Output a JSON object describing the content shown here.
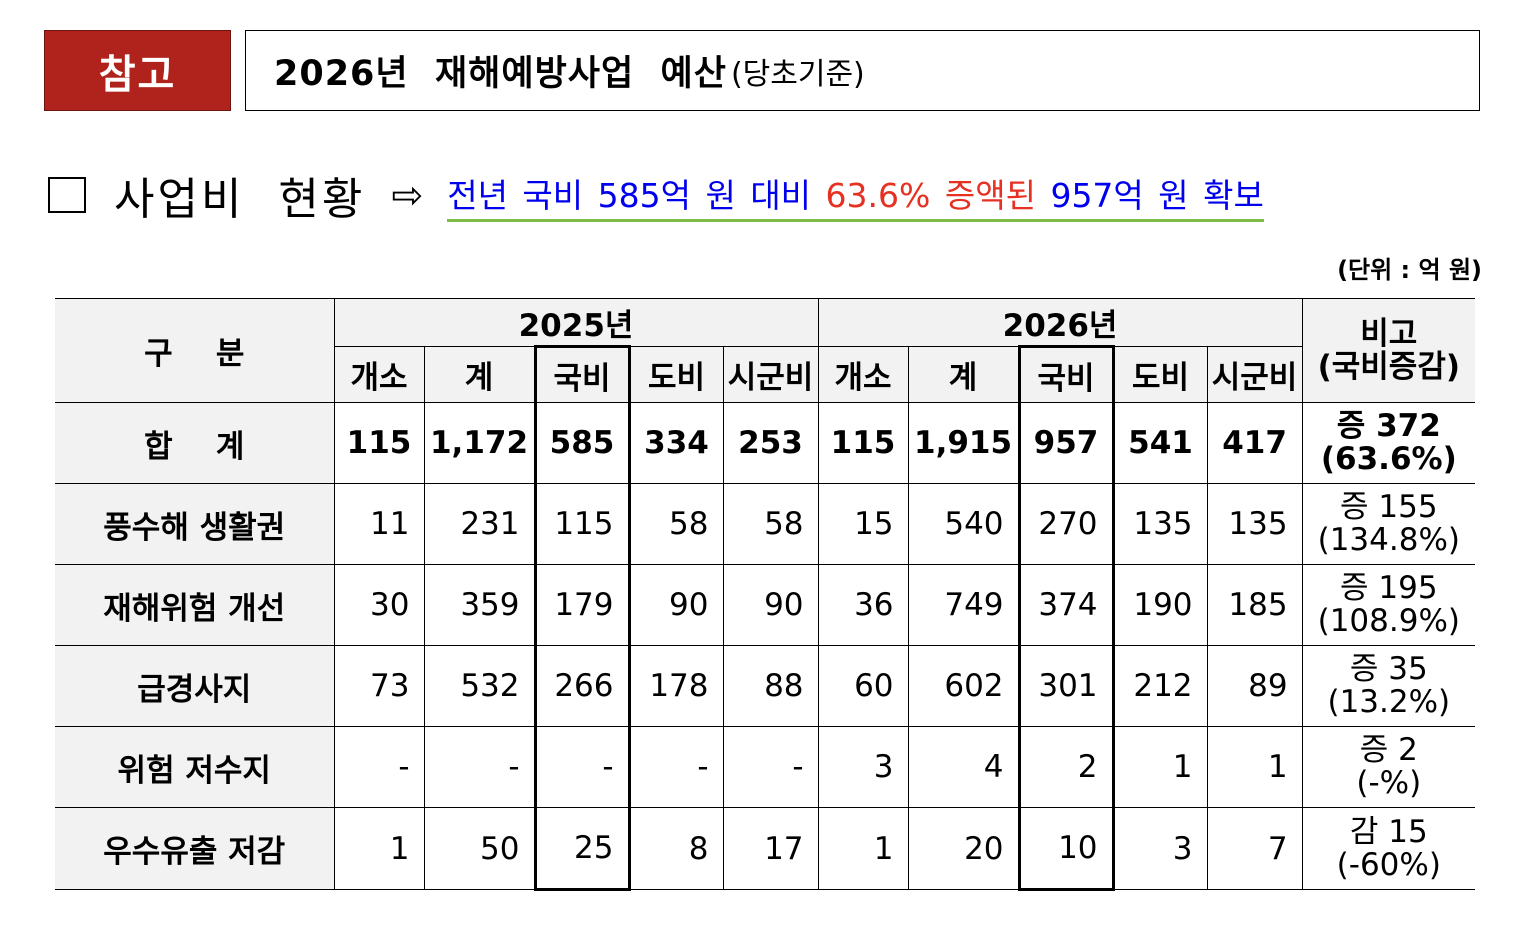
{
  "header": {
    "tag": "참고",
    "title": "2026년  재해예방사업  예산",
    "title_sub": "(당초기준)"
  },
  "section": {
    "title": "사업비  현황",
    "arrow": "⇨",
    "highlight_a": "전년 국비 585억 원 대비 ",
    "highlight_b": "63.6% 증액된",
    "highlight_c": " 957억 원 확보"
  },
  "unit": "(단위 : 억 원)",
  "table": {
    "col_label": "구    분",
    "year_2025": "2025년",
    "year_2026": "2026년",
    "remark_line1": "비고",
    "remark_line2": "(국비증감)",
    "sub_headers": [
      "개소",
      "계",
      "국비",
      "도비",
      "시군비"
    ],
    "rows": [
      {
        "label": "합    계",
        "v2025": [
          "115",
          "1,172",
          "585",
          "334",
          "253"
        ],
        "v2026": [
          "115",
          "1,915",
          "957",
          "541",
          "417"
        ],
        "note1": "증 372",
        "note2": "(63.6%)"
      },
      {
        "label": "풍수해 생활권",
        "v2025": [
          "11",
          "231",
          "115",
          "58",
          "58"
        ],
        "v2026": [
          "15",
          "540",
          "270",
          "135",
          "135"
        ],
        "note1": "증 155",
        "note2": "(134.8%)"
      },
      {
        "label": "재해위험 개선",
        "v2025": [
          "30",
          "359",
          "179",
          "90",
          "90"
        ],
        "v2026": [
          "36",
          "749",
          "374",
          "190",
          "185"
        ],
        "note1": "증 195",
        "note2": "(108.9%)"
      },
      {
        "label": "급경사지",
        "v2025": [
          "73",
          "532",
          "266",
          "178",
          "88"
        ],
        "v2026": [
          "60",
          "602",
          "301",
          "212",
          "89"
        ],
        "note1": "증 35",
        "note2": "(13.2%)"
      },
      {
        "label": "위험 저수지",
        "v2025": [
          "-",
          "-",
          "-",
          "-",
          "-"
        ],
        "v2026": [
          "3",
          "4",
          "2",
          "1",
          "1"
        ],
        "note1": "증 2",
        "note2": "(-%)"
      },
      {
        "label": "우수유출 저감",
        "v2025": [
          "1",
          "50",
          "25",
          "8",
          "17"
        ],
        "v2026": [
          "1",
          "20",
          "10",
          "3",
          "7"
        ],
        "note1": "감 15",
        "note2": "(-60%)"
      }
    ]
  }
}
